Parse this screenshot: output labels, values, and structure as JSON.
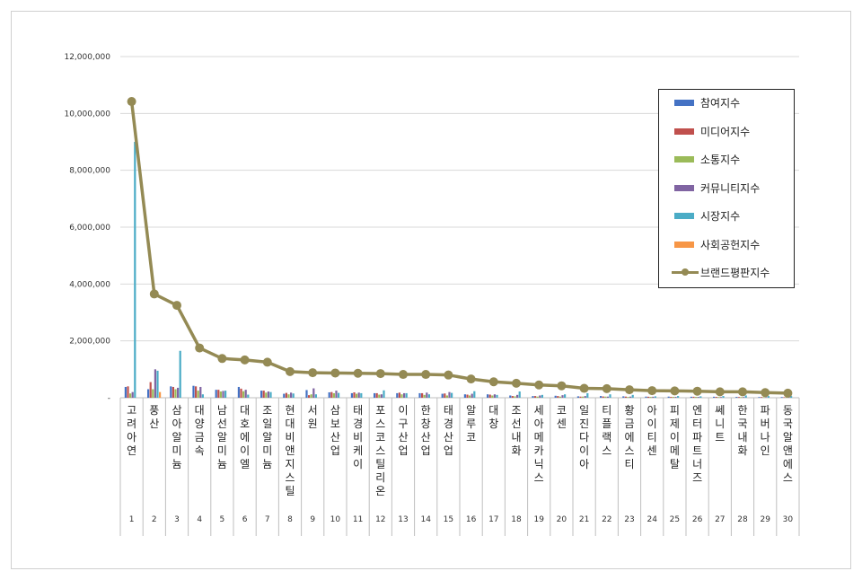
{
  "chart_data": {
    "type": "bar",
    "ylim": [
      0,
      12000000
    ],
    "yticks": [
      0,
      2000000,
      4000000,
      6000000,
      8000000,
      10000000,
      12000000
    ],
    "ytick_labels": [
      "-",
      "2,000,000",
      "4,000,000",
      "6,000,000",
      "8,000,000",
      "10,000,000",
      "12,000,000"
    ],
    "grid": true,
    "legend_position": "top-right",
    "categories": [
      "고려아연",
      "풍산",
      "삼아알미늄",
      "대양금속",
      "남선알미늄",
      "대호에이엘",
      "조일알미늄",
      "현대비앤지스틸",
      "서원",
      "삼보산업",
      "태경비케이",
      "포스코스틸리온",
      "이구산업",
      "한창산업",
      "태경산업",
      "알루코",
      "대창",
      "조선내화",
      "세아메카닉스",
      "코센",
      "일진다이아",
      "티플랙스",
      "황금에스티",
      "아이티센",
      "피제이메탈",
      "엔터파트너즈",
      "쎄니트",
      "한국내화",
      "파버나인",
      "동국알앤에스"
    ],
    "rank_labels": [
      "1",
      "2",
      "3",
      "4",
      "5",
      "6",
      "7",
      "8",
      "9",
      "10",
      "11",
      "12",
      "13",
      "14",
      "15",
      "16",
      "17",
      "18",
      "19",
      "20",
      "21",
      "22",
      "23",
      "24",
      "25",
      "26",
      "27",
      "28",
      "29",
      "30"
    ],
    "series": [
      {
        "name": "참여지수",
        "color": "#4472c4",
        "kind": "bar",
        "values": [
          380000,
          300000,
          400000,
          420000,
          280000,
          380000,
          250000,
          140000,
          270000,
          190000,
          160000,
          160000,
          160000,
          160000,
          140000,
          120000,
          120000,
          80000,
          60000,
          70000,
          50000,
          60000,
          50000,
          40000,
          40000,
          35000,
          35000,
          30000,
          25000,
          25000
        ]
      },
      {
        "name": "미디어지수",
        "color": "#c0504d",
        "kind": "bar",
        "values": [
          400000,
          550000,
          380000,
          400000,
          280000,
          320000,
          250000,
          170000,
          90000,
          200000,
          190000,
          160000,
          180000,
          160000,
          150000,
          110000,
          110000,
          60000,
          60000,
          60000,
          40000,
          45000,
          40000,
          35000,
          30000,
          35000,
          30000,
          25000,
          25000,
          20000
        ]
      },
      {
        "name": "소통지수",
        "color": "#9bbb59",
        "kind": "bar",
        "values": [
          150000,
          300000,
          300000,
          250000,
          220000,
          230000,
          180000,
          120000,
          120000,
          160000,
          140000,
          110000,
          120000,
          100000,
          80000,
          80000,
          80000,
          50000,
          40000,
          40000,
          40000,
          40000,
          30000,
          30000,
          30000,
          30000,
          25000,
          25000,
          20000,
          20000
        ]
      },
      {
        "name": "커뮤니티지수",
        "color": "#8064a2",
        "kind": "bar",
        "values": [
          200000,
          1000000,
          350000,
          380000,
          240000,
          280000,
          220000,
          180000,
          330000,
          250000,
          180000,
          120000,
          160000,
          180000,
          200000,
          140000,
          120000,
          100000,
          80000,
          90000,
          60000,
          40000,
          40000,
          35000,
          30000,
          30000,
          25000,
          25000,
          20000,
          20000
        ]
      },
      {
        "name": "시장지수",
        "color": "#4bacc6",
        "kind": "bar",
        "values": [
          9000000,
          950000,
          1650000,
          120000,
          250000,
          110000,
          200000,
          150000,
          120000,
          170000,
          160000,
          260000,
          160000,
          120000,
          170000,
          230000,
          100000,
          220000,
          100000,
          120000,
          160000,
          120000,
          100000,
          50000,
          60000,
          50000,
          60000,
          80000,
          60000,
          60000
        ]
      },
      {
        "name": "사회공헌지수",
        "color": "#f79646",
        "kind": "bar",
        "values": [
          0,
          200000,
          0,
          0,
          0,
          0,
          0,
          0,
          0,
          0,
          0,
          0,
          0,
          0,
          0,
          0,
          0,
          0,
          0,
          0,
          0,
          0,
          0,
          0,
          0,
          0,
          0,
          0,
          0,
          0
        ]
      },
      {
        "name": "브랜드평판지수",
        "color": "#948a54",
        "kind": "line",
        "values": [
          10420000,
          3650000,
          3250000,
          1750000,
          1380000,
          1330000,
          1250000,
          920000,
          880000,
          870000,
          860000,
          850000,
          820000,
          820000,
          800000,
          660000,
          560000,
          510000,
          450000,
          420000,
          330000,
          320000,
          280000,
          250000,
          240000,
          230000,
          210000,
          210000,
          180000,
          160000
        ]
      }
    ]
  }
}
